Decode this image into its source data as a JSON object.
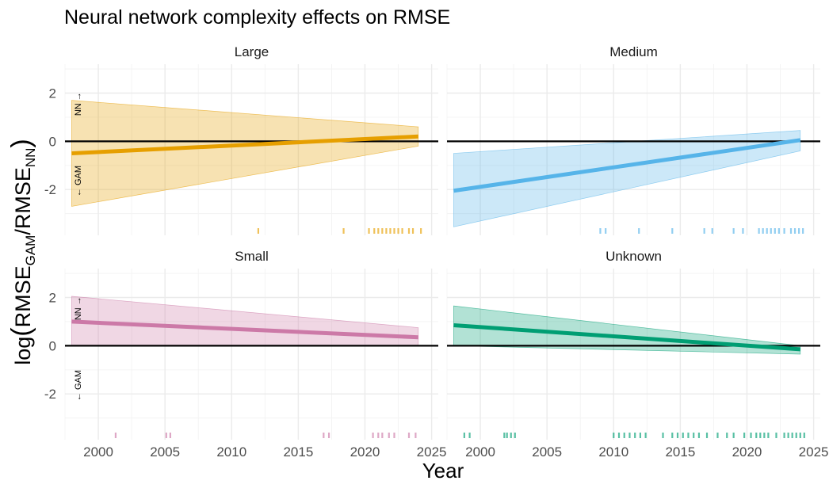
{
  "chart_data": {
    "type": "line",
    "title": "Neural network complexity effects on RMSE",
    "xlabel": "Year",
    "ylabel": {
      "prefix": "log",
      "num_base": "RMSE",
      "num_sub": "GAM",
      "den_base": "RMSE",
      "den_sub": "NN"
    },
    "xlim": [
      1997.5,
      2025.5
    ],
    "ylim": [
      -3.9,
      3.2
    ],
    "x_ticks": [
      "2000",
      "2005",
      "2010",
      "2015",
      "2020",
      "2025"
    ],
    "y_ticks": [
      "2",
      "0",
      "-2"
    ],
    "y_tick_values": [
      2,
      0,
      -2
    ],
    "reference_line": 0,
    "direction_labels": {
      "up": "NN →",
      "down": "← GAM"
    },
    "colors": {
      "Large": "#E69F00",
      "Medium": "#56B4E9",
      "Small": "#CC79A7",
      "Unknown": "#009E73"
    },
    "panels": [
      {
        "name": "Large",
        "x": [
          1998,
          2024
        ],
        "fit": [
          -0.5,
          0.2
        ],
        "ci_lower": [
          -2.7,
          -0.2
        ],
        "ci_upper": [
          1.7,
          0.6
        ],
        "rug": [
          2012.0,
          2018.4,
          2020.3,
          2020.7,
          2021.0,
          2021.3,
          2021.6,
          2021.9,
          2022.2,
          2022.5,
          2022.8,
          2023.3,
          2023.6,
          2024.2
        ]
      },
      {
        "name": "Medium",
        "x": [
          1998,
          2024
        ],
        "fit": [
          -2.05,
          0.05
        ],
        "ci_lower": [
          -3.55,
          -0.4
        ],
        "ci_upper": [
          -0.5,
          0.45
        ],
        "rug": [
          2009.0,
          2009.4,
          2011.9,
          2014.4,
          2016.8,
          2017.4,
          2019.0,
          2019.7,
          2020.9,
          2021.2,
          2021.5,
          2021.8,
          2022.1,
          2022.4,
          2022.8,
          2023.3,
          2023.6,
          2023.9,
          2024.2
        ]
      },
      {
        "name": "Small",
        "x": [
          1998,
          2024
        ],
        "fit": [
          1.0,
          0.35
        ],
        "ci_lower": [
          0.0,
          0.0
        ],
        "ci_upper": [
          2.05,
          0.75
        ],
        "rug": [
          2001.3,
          2005.1,
          2005.4,
          2016.9,
          2017.3,
          2020.6,
          2021.0,
          2021.3,
          2021.8,
          2022.2,
          2023.3,
          2023.8
        ]
      },
      {
        "name": "Unknown",
        "x": [
          1998,
          2024
        ],
        "fit": [
          0.85,
          -0.15
        ],
        "ci_lower": [
          0.0,
          -0.35
        ],
        "ci_upper": [
          1.65,
          0.0
        ],
        "rug": [
          1998.8,
          1999.2,
          2001.8,
          2002.0,
          2002.3,
          2002.6,
          2010.0,
          2010.4,
          2010.8,
          2011.2,
          2011.6,
          2012.0,
          2012.4,
          2013.7,
          2014.4,
          2014.8,
          2015.2,
          2015.6,
          2016.0,
          2016.4,
          2017.0,
          2017.8,
          2018.5,
          2019.0,
          2019.8,
          2020.3,
          2020.7,
          2021.0,
          2021.3,
          2021.6,
          2022.2,
          2022.8,
          2023.1,
          2023.4,
          2023.7,
          2024.0,
          2024.3
        ]
      }
    ]
  }
}
